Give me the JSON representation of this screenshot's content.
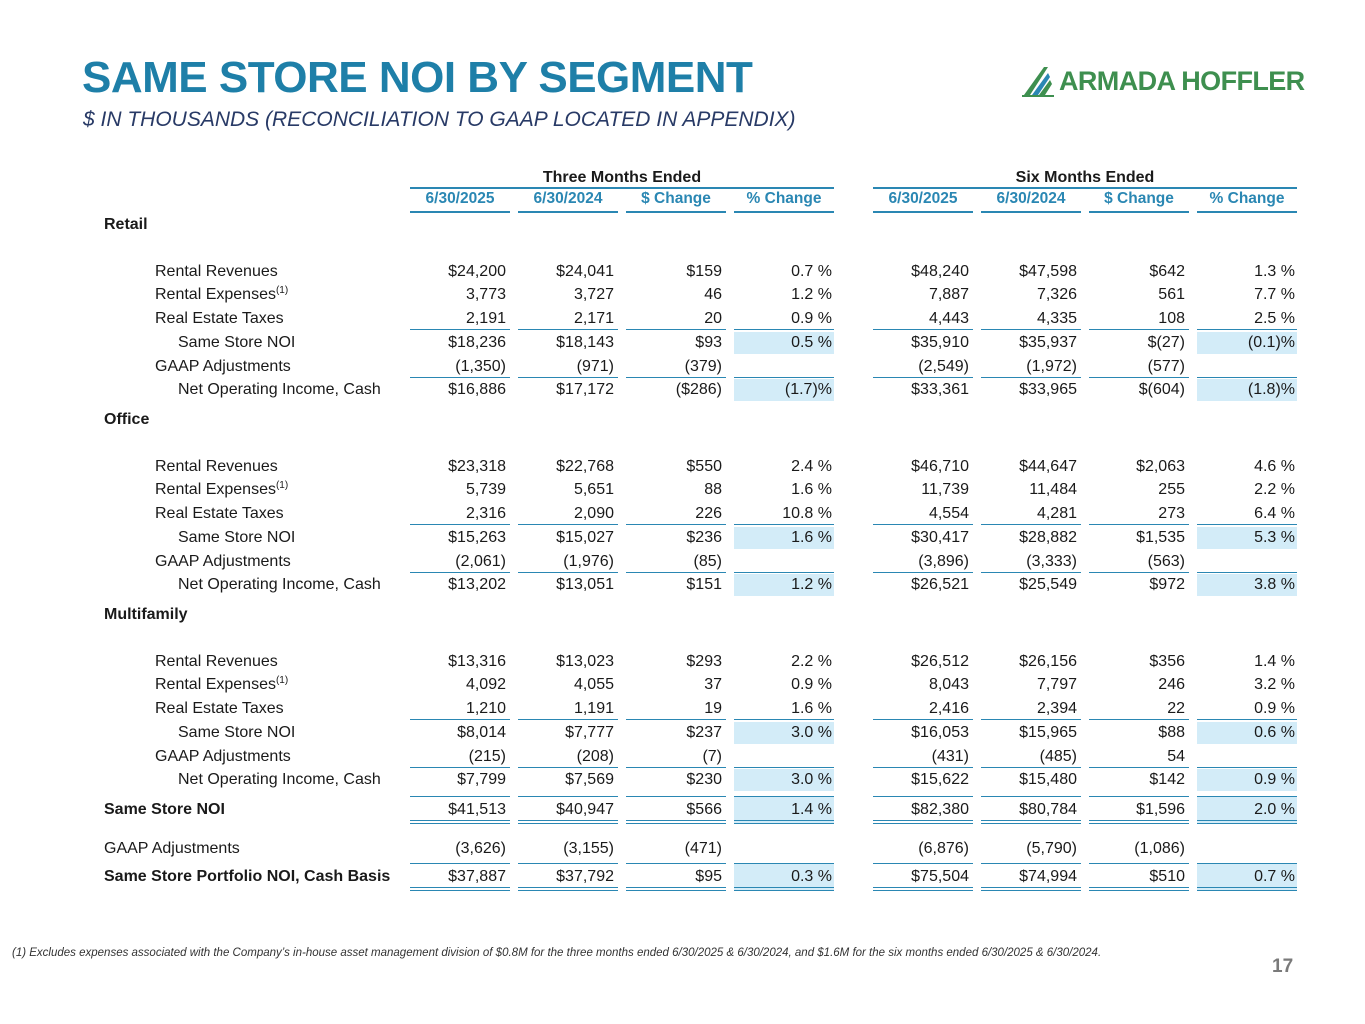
{
  "header": {
    "title": "SAME STORE NOI BY SEGMENT",
    "subtitle": "$ IN THOUSANDS (RECONCILIATION TO GAAP LOCATED IN APPENDIX)",
    "logo_text": "ARMADA HOFFLER"
  },
  "groups": [
    "Three Months Ended",
    "Six Months Ended"
  ],
  "columns": [
    "6/30/2025",
    "6/30/2024",
    "$ Change",
    "% Change",
    "6/30/2025",
    "6/30/2024",
    "$ Change",
    "% Change"
  ],
  "segments": [
    {
      "name": "Retail",
      "rows": [
        {
          "label": "Rental Revenues",
          "sup": "",
          "values": [
            "$24,200",
            "$24,041",
            "$159",
            "0.7 %",
            "$48,240",
            "$47,598",
            "$642",
            "1.3 %"
          ]
        },
        {
          "label": "Rental Expenses",
          "sup": "(1)",
          "values": [
            "3,773",
            "3,727",
            "46",
            "1.2 %",
            "7,887",
            "7,326",
            "561",
            "7.7 %"
          ]
        },
        {
          "label": "Real Estate Taxes",
          "sup": "",
          "values": [
            "2,191",
            "2,171",
            "20",
            "0.9 %",
            "4,443",
            "4,335",
            "108",
            "2.5 %"
          ]
        },
        {
          "label": "Same Store NOI",
          "sup": "",
          "values": [
            "$18,236",
            "$18,143",
            "$93",
            "0.5 %",
            "$35,910",
            "$35,937",
            "$(27)",
            "(0.1)%"
          ]
        },
        {
          "label": "GAAP Adjustments",
          "sup": "",
          "values": [
            "(1,350)",
            "(971)",
            "(379)",
            "",
            "(2,549)",
            "(1,972)",
            "(577)",
            ""
          ]
        },
        {
          "label": "Net Operating Income, Cash",
          "sup": "",
          "values": [
            "$16,886",
            "$17,172",
            "($286)",
            "(1.7)%",
            "$33,361",
            "$33,965",
            "$(604)",
            "(1.8)%"
          ]
        }
      ]
    },
    {
      "name": "Office",
      "rows": [
        {
          "label": "Rental Revenues",
          "sup": "",
          "values": [
            "$23,318",
            "$22,768",
            "$550",
            "2.4 %",
            "$46,710",
            "$44,647",
            "$2,063",
            "4.6 %"
          ]
        },
        {
          "label": "Rental Expenses",
          "sup": "(1)",
          "values": [
            "5,739",
            "5,651",
            "88",
            "1.6 %",
            "11,739",
            "11,484",
            "255",
            "2.2 %"
          ]
        },
        {
          "label": "Real Estate Taxes",
          "sup": "",
          "values": [
            "2,316",
            "2,090",
            "226",
            "10.8 %",
            "4,554",
            "4,281",
            "273",
            "6.4 %"
          ]
        },
        {
          "label": "Same Store NOI",
          "sup": "",
          "values": [
            "$15,263",
            "$15,027",
            "$236",
            "1.6 %",
            "$30,417",
            "$28,882",
            "$1,535",
            "5.3 %"
          ]
        },
        {
          "label": "GAAP Adjustments",
          "sup": "",
          "values": [
            "(2,061)",
            "(1,976)",
            "(85)",
            "",
            "(3,896)",
            "(3,333)",
            "(563)",
            ""
          ]
        },
        {
          "label": "Net Operating Income, Cash",
          "sup": "",
          "values": [
            "$13,202",
            "$13,051",
            "$151",
            "1.2 %",
            "$26,521",
            "$25,549",
            "$972",
            "3.8 %"
          ]
        }
      ]
    },
    {
      "name": "Multifamily",
      "rows": [
        {
          "label": "Rental Revenues",
          "sup": "",
          "values": [
            "$13,316",
            "$13,023",
            "$293",
            "2.2 %",
            "$26,512",
            "$26,156",
            "$356",
            "1.4 %"
          ]
        },
        {
          "label": "Rental Expenses",
          "sup": "(1)",
          "values": [
            "4,092",
            "4,055",
            "37",
            "0.9 %",
            "8,043",
            "7,797",
            "246",
            "3.2 %"
          ]
        },
        {
          "label": "Real Estate Taxes",
          "sup": "",
          "values": [
            "1,210",
            "1,191",
            "19",
            "1.6 %",
            "2,416",
            "2,394",
            "22",
            "0.9 %"
          ]
        },
        {
          "label": "Same Store NOI",
          "sup": "",
          "values": [
            "$8,014",
            "$7,777",
            "$237",
            "3.0 %",
            "$16,053",
            "$15,965",
            "$88",
            "0.6 %"
          ]
        },
        {
          "label": "GAAP Adjustments",
          "sup": "",
          "values": [
            "(215)",
            "(208)",
            "(7)",
            "",
            "(431)",
            "(485)",
            "54",
            ""
          ]
        },
        {
          "label": "Net Operating Income, Cash",
          "sup": "",
          "values": [
            "$7,799",
            "$7,569",
            "$230",
            "3.0 %",
            "$15,622",
            "$15,480",
            "$142",
            "0.9 %"
          ]
        }
      ]
    }
  ],
  "totals": [
    {
      "label": "Same Store NOI",
      "values": [
        "$41,513",
        "$40,947",
        "$566",
        "1.4 %",
        "$82,380",
        "$80,784",
        "$1,596",
        "2.0 %"
      ]
    },
    {
      "label": "GAAP Adjustments",
      "values": [
        "(3,626)",
        "(3,155)",
        "(471)",
        "",
        "(6,876)",
        "(5,790)",
        "(1,086)",
        ""
      ]
    },
    {
      "label": "Same Store Portfolio NOI, Cash Basis",
      "values": [
        "$37,887",
        "$37,792",
        "$95",
        "0.3 %",
        "$75,504",
        "$74,994",
        "$510",
        "0.7 %"
      ]
    }
  ],
  "footnote": "(1)   Excludes expenses associated with the Company’s in-house asset management division of $0.8M for the three months ended 6/30/2025 & 6/30/2024, and $1.6M  for the six months ended  6/30/2025 & 6/30/2024.",
  "page_number": "17"
}
